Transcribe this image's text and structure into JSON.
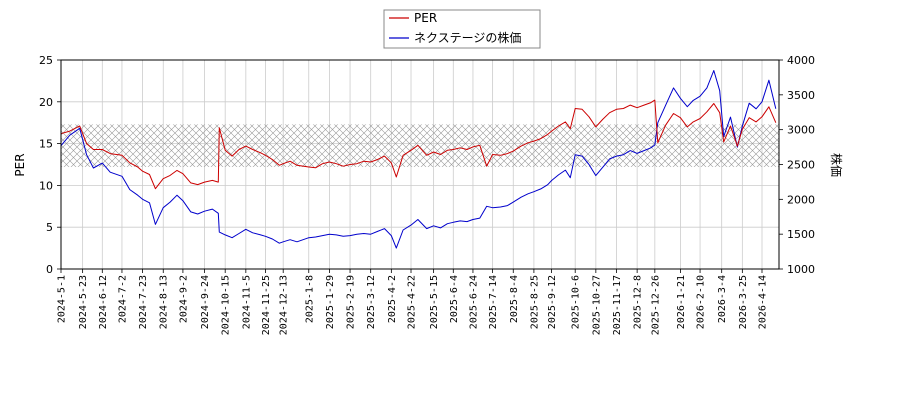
{
  "chart_data": {
    "type": "line",
    "legend_position": "top-center",
    "grid": true,
    "band": {
      "axis": "left",
      "range": [
        12.2,
        17.3
      ],
      "pattern": "crosshatch"
    },
    "x_ticks": [
      "2024-5-1",
      "2024-5-23",
      "2024-6-12",
      "2024-7-2",
      "2024-7-23",
      "2024-8-13",
      "2024-9-2",
      "2024-9-24",
      "2024-10-15",
      "2024-11-5",
      "2024-11-25",
      "2024-12-13",
      "2025-1-8",
      "2025-1-29",
      "2025-2-19",
      "2025-3-12",
      "2025-4-2",
      "2025-4-22",
      "2025-5-15",
      "2025-6-4",
      "2025-6-24",
      "2025-7-14",
      "2025-8-4",
      "2025-8-25",
      "2025-9-12",
      "2025-10-6",
      "2025-10-27",
      "2025-11-17",
      "2025-12-8",
      "2025-12-26",
      "2026-1-21",
      "2026-2-10",
      "2026-3-4",
      "2026-3-25",
      "2026-4-14"
    ],
    "y_left": {
      "label": "PER",
      "range": [
        0,
        25
      ],
      "ticks": [
        "0",
        "5",
        "10",
        "15",
        "20",
        "25"
      ]
    },
    "y_right": {
      "label": "株価",
      "range": [
        1000,
        4000
      ],
      "ticks": [
        "1000",
        "1500",
        "2000",
        "2500",
        "3000",
        "3500",
        "4000"
      ]
    },
    "series": [
      {
        "name": "PER",
        "axis": "left",
        "color": "#cc0000",
        "values": [
          [
            "2024-5-1",
            16.2
          ],
          [
            "2024-5-10",
            16.5
          ],
          [
            "2024-5-20",
            17.1
          ],
          [
            "2024-5-27",
            15.0
          ],
          [
            "2024-6-3",
            14.3
          ],
          [
            "2024-6-12",
            14.3
          ],
          [
            "2024-6-20",
            13.8
          ],
          [
            "2024-7-2",
            13.6
          ],
          [
            "2024-7-10",
            12.7
          ],
          [
            "2024-7-18",
            12.2
          ],
          [
            "2024-7-23",
            11.7
          ],
          [
            "2024-7-30",
            11.3
          ],
          [
            "2024-8-5",
            9.6
          ],
          [
            "2024-8-13",
            10.8
          ],
          [
            "2024-8-20",
            11.2
          ],
          [
            "2024-8-27",
            11.8
          ],
          [
            "2024-9-2",
            11.4
          ],
          [
            "2024-9-10",
            10.3
          ],
          [
            "2024-9-17",
            10.1
          ],
          [
            "2024-9-24",
            10.4
          ],
          [
            "2024-10-2",
            10.6
          ],
          [
            "2024-10-8",
            10.4
          ],
          [
            "2024-10-9",
            16.9
          ],
          [
            "2024-10-15",
            14.2
          ],
          [
            "2024-10-22",
            13.5
          ],
          [
            "2024-10-29",
            14.3
          ],
          [
            "2024-11-5",
            14.7
          ],
          [
            "2024-11-12",
            14.3
          ],
          [
            "2024-11-20",
            13.9
          ],
          [
            "2024-11-25",
            13.6
          ],
          [
            "2024-12-2",
            13.1
          ],
          [
            "2024-12-9",
            12.4
          ],
          [
            "2024-12-13",
            12.6
          ],
          [
            "2024-12-20",
            12.9
          ],
          [
            "2024-12-27",
            12.4
          ],
          [
            "2025-1-8",
            12.2
          ],
          [
            "2025-1-15",
            12.1
          ],
          [
            "2025-1-22",
            12.6
          ],
          [
            "2025-1-29",
            12.8
          ],
          [
            "2025-2-5",
            12.6
          ],
          [
            "2025-2-12",
            12.3
          ],
          [
            "2025-2-19",
            12.5
          ],
          [
            "2025-2-26",
            12.6
          ],
          [
            "2025-3-5",
            12.9
          ],
          [
            "2025-3-12",
            12.8
          ],
          [
            "2025-3-19",
            13.1
          ],
          [
            "2025-3-26",
            13.5
          ],
          [
            "2025-4-2",
            12.7
          ],
          [
            "2025-4-7",
            11.0
          ],
          [
            "2025-4-14",
            13.6
          ],
          [
            "2025-4-22",
            14.2
          ],
          [
            "2025-4-29",
            14.8
          ],
          [
            "2025-5-8",
            13.6
          ],
          [
            "2025-5-15",
            14.0
          ],
          [
            "2025-5-22",
            13.7
          ],
          [
            "2025-5-29",
            14.2
          ],
          [
            "2025-6-4",
            14.3
          ],
          [
            "2025-6-11",
            14.5
          ],
          [
            "2025-6-18",
            14.3
          ],
          [
            "2025-6-24",
            14.6
          ],
          [
            "2025-7-1",
            14.8
          ],
          [
            "2025-7-8",
            12.3
          ],
          [
            "2025-7-14",
            13.7
          ],
          [
            "2025-7-22",
            13.6
          ],
          [
            "2025-7-29",
            13.8
          ],
          [
            "2025-8-4",
            14.1
          ],
          [
            "2025-8-12",
            14.7
          ],
          [
            "2025-8-19",
            15.1
          ],
          [
            "2025-8-25",
            15.3
          ],
          [
            "2025-9-1",
            15.6
          ],
          [
            "2025-9-8",
            16.1
          ],
          [
            "2025-9-12",
            16.5
          ],
          [
            "2025-9-19",
            17.1
          ],
          [
            "2025-9-26",
            17.6
          ],
          [
            "2025-10-1",
            16.8
          ],
          [
            "2025-10-6",
            19.2
          ],
          [
            "2025-10-13",
            19.1
          ],
          [
            "2025-10-20",
            18.2
          ],
          [
            "2025-10-27",
            17.0
          ],
          [
            "2025-11-3",
            17.9
          ],
          [
            "2025-11-10",
            18.7
          ],
          [
            "2025-11-17",
            19.1
          ],
          [
            "2025-11-24",
            19.2
          ],
          [
            "2025-12-1",
            19.6
          ],
          [
            "2025-12-8",
            19.3
          ],
          [
            "2025-12-15",
            19.6
          ],
          [
            "2025-12-22",
            19.9
          ],
          [
            "2025-12-26",
            20.2
          ],
          [
            "2025-12-29",
            15.1
          ],
          [
            "2026-1-6",
            17.2
          ],
          [
            "2026-1-14",
            18.6
          ],
          [
            "2026-1-21",
            18.1
          ],
          [
            "2026-1-28",
            17.0
          ],
          [
            "2026-2-3",
            17.6
          ],
          [
            "2026-2-10",
            18.0
          ],
          [
            "2026-2-17",
            18.8
          ],
          [
            "2026-2-24",
            19.8
          ],
          [
            "2026-3-2",
            18.7
          ],
          [
            "2026-3-6",
            15.2
          ],
          [
            "2026-3-13",
            17.1
          ],
          [
            "2026-3-20",
            14.7
          ],
          [
            "2026-3-25",
            16.7
          ],
          [
            "2026-4-1",
            18.1
          ],
          [
            "2026-4-8",
            17.6
          ],
          [
            "2026-4-14",
            18.2
          ],
          [
            "2026-4-21",
            19.4
          ],
          [
            "2026-4-28",
            17.5
          ]
        ]
      },
      {
        "name": "ネクステージの株価",
        "axis": "right",
        "color": "#0000cc",
        "values": [
          [
            "2024-5-1",
            2770
          ],
          [
            "2024-5-10",
            2920
          ],
          [
            "2024-5-20",
            3020
          ],
          [
            "2024-5-27",
            2640
          ],
          [
            "2024-6-3",
            2450
          ],
          [
            "2024-6-12",
            2520
          ],
          [
            "2024-6-20",
            2390
          ],
          [
            "2024-7-2",
            2330
          ],
          [
            "2024-7-10",
            2140
          ],
          [
            "2024-7-18",
            2060
          ],
          [
            "2024-7-23",
            2000
          ],
          [
            "2024-7-30",
            1950
          ],
          [
            "2024-8-5",
            1640
          ],
          [
            "2024-8-13",
            1880
          ],
          [
            "2024-8-20",
            1960
          ],
          [
            "2024-8-27",
            2060
          ],
          [
            "2024-9-2",
            1980
          ],
          [
            "2024-9-10",
            1820
          ],
          [
            "2024-9-17",
            1790
          ],
          [
            "2024-9-24",
            1830
          ],
          [
            "2024-10-2",
            1860
          ],
          [
            "2024-10-8",
            1800
          ],
          [
            "2024-10-9",
            1530
          ],
          [
            "2024-10-15",
            1490
          ],
          [
            "2024-10-22",
            1450
          ],
          [
            "2024-10-29",
            1510
          ],
          [
            "2024-11-5",
            1570
          ],
          [
            "2024-11-12",
            1520
          ],
          [
            "2024-11-20",
            1490
          ],
          [
            "2024-11-25",
            1470
          ],
          [
            "2024-12-2",
            1430
          ],
          [
            "2024-12-9",
            1370
          ],
          [
            "2024-12-13",
            1390
          ],
          [
            "2024-12-20",
            1420
          ],
          [
            "2024-12-27",
            1390
          ],
          [
            "2025-1-8",
            1450
          ],
          [
            "2025-1-15",
            1460
          ],
          [
            "2025-1-22",
            1480
          ],
          [
            "2025-1-29",
            1500
          ],
          [
            "2025-2-5",
            1490
          ],
          [
            "2025-2-12",
            1470
          ],
          [
            "2025-2-19",
            1480
          ],
          [
            "2025-2-26",
            1500
          ],
          [
            "2025-3-5",
            1510
          ],
          [
            "2025-3-12",
            1500
          ],
          [
            "2025-3-19",
            1540
          ],
          [
            "2025-3-26",
            1580
          ],
          [
            "2025-4-2",
            1480
          ],
          [
            "2025-4-7",
            1300
          ],
          [
            "2025-4-14",
            1560
          ],
          [
            "2025-4-22",
            1630
          ],
          [
            "2025-4-29",
            1710
          ],
          [
            "2025-5-8",
            1580
          ],
          [
            "2025-5-15",
            1620
          ],
          [
            "2025-5-22",
            1590
          ],
          [
            "2025-5-29",
            1650
          ],
          [
            "2025-6-4",
            1670
          ],
          [
            "2025-6-11",
            1690
          ],
          [
            "2025-6-18",
            1680
          ],
          [
            "2025-6-24",
            1710
          ],
          [
            "2025-7-1",
            1730
          ],
          [
            "2025-7-8",
            1900
          ],
          [
            "2025-7-14",
            1880
          ],
          [
            "2025-7-22",
            1890
          ],
          [
            "2025-7-29",
            1910
          ],
          [
            "2025-8-4",
            1960
          ],
          [
            "2025-8-12",
            2030
          ],
          [
            "2025-8-19",
            2080
          ],
          [
            "2025-8-25",
            2110
          ],
          [
            "2025-9-1",
            2150
          ],
          [
            "2025-9-8",
            2210
          ],
          [
            "2025-9-12",
            2270
          ],
          [
            "2025-9-19",
            2350
          ],
          [
            "2025-9-26",
            2420
          ],
          [
            "2025-10-1",
            2310
          ],
          [
            "2025-10-6",
            2640
          ],
          [
            "2025-10-13",
            2620
          ],
          [
            "2025-10-20",
            2500
          ],
          [
            "2025-10-27",
            2340
          ],
          [
            "2025-11-3",
            2460
          ],
          [
            "2025-11-10",
            2580
          ],
          [
            "2025-11-17",
            2620
          ],
          [
            "2025-11-24",
            2640
          ],
          [
            "2025-12-1",
            2700
          ],
          [
            "2025-12-8",
            2660
          ],
          [
            "2025-12-15",
            2700
          ],
          [
            "2025-12-22",
            2740
          ],
          [
            "2025-12-26",
            2780
          ],
          [
            "2025-12-29",
            3100
          ],
          [
            "2026-1-6",
            3350
          ],
          [
            "2026-1-14",
            3600
          ],
          [
            "2026-1-21",
            3450
          ],
          [
            "2026-1-28",
            3330
          ],
          [
            "2026-2-3",
            3420
          ],
          [
            "2026-2-10",
            3480
          ],
          [
            "2026-2-17",
            3600
          ],
          [
            "2026-2-24",
            3850
          ],
          [
            "2026-3-2",
            3560
          ],
          [
            "2026-3-6",
            2900
          ],
          [
            "2026-3-13",
            3180
          ],
          [
            "2026-3-20",
            2750
          ],
          [
            "2026-3-25",
            3050
          ],
          [
            "2026-4-1",
            3380
          ],
          [
            "2026-4-8",
            3300
          ],
          [
            "2026-4-14",
            3400
          ],
          [
            "2026-4-21",
            3710
          ],
          [
            "2026-4-28",
            3300
          ]
        ]
      }
    ]
  }
}
